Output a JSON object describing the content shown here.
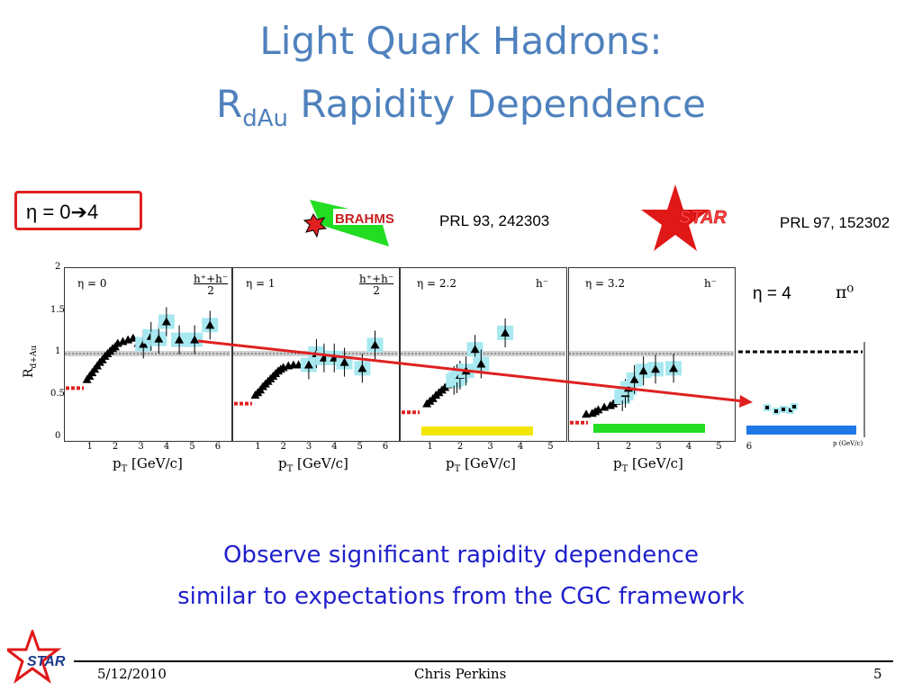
{
  "slide": {
    "title_line1": "Light Quark Hadrons:",
    "title_line2_main": "R",
    "title_line2_sub": "dAu",
    "title_line2_rest": " Rapidity Dependence",
    "eta_range": "η = 0➔4",
    "brahms_logo": "BRAHMS",
    "brahms_ref": "PRL 93, 242303",
    "star_logo": "STAR",
    "star_ref": "PRL 97, 152302",
    "eta4_label": "η = 4",
    "pi0_label": "π⁰",
    "message_line1": "Observe significant rapidity dependence",
    "message_line2": "similar to expectations from the CGC framework",
    "footer_date": "5/12/2010",
    "footer_author": "Chris Perkins",
    "footer_page": "5",
    "footer_logo": "STAR"
  },
  "axes": {
    "y_label": "R",
    "y_label_sub": "d+Au",
    "x_label": "p",
    "x_label_sub": "T",
    "x_label_unit": " [GeV/c]",
    "y_ticks": [
      "2",
      "1.5",
      "1",
      "0.5",
      "0"
    ],
    "x_ticks": [
      "1",
      "2",
      "3",
      "4",
      "5",
      "6"
    ],
    "star_x_label": "p  (GeV/c)"
  },
  "colors": {
    "title": "#4F81BD",
    "message": "#1f1fcc",
    "arrow": "#e02020",
    "eta_box": "#e02020",
    "marker": "#000000",
    "syst": "#a8e8f0",
    "bar_eta22": "#f2e600",
    "bar_eta32": "#22dd22",
    "bar_eta4": "#1e78e6"
  },
  "chart_data": [
    {
      "type": "scatter",
      "panel": "η = 0",
      "species": "h⁺+h⁻ / 2",
      "x": [
        0.9,
        1.0,
        1.1,
        1.2,
        1.3,
        1.4,
        1.5,
        1.6,
        1.7,
        1.8,
        1.9,
        2.0,
        2.1,
        2.3,
        2.5,
        2.7,
        2.9,
        3.1,
        3.4,
        3.7,
        4.0,
        4.5,
        5.1,
        5.7
      ],
      "y": [
        0.7,
        0.74,
        0.78,
        0.82,
        0.86,
        0.9,
        0.93,
        0.97,
        1.0,
        1.03,
        1.06,
        1.08,
        1.12,
        1.14,
        1.16,
        1.18,
        1.12,
        1.11,
        1.2,
        1.17,
        1.37,
        1.16,
        1.16,
        1.33
      ],
      "xlim": [
        0,
        6.5
      ],
      "ylim": [
        0,
        2
      ]
    },
    {
      "type": "scatter",
      "panel": "η = 1",
      "species": "h⁺+h⁻ / 2",
      "x": [
        0.9,
        1.0,
        1.1,
        1.2,
        1.3,
        1.4,
        1.5,
        1.6,
        1.7,
        1.8,
        1.9,
        2.0,
        2.2,
        2.4,
        2.6,
        2.8,
        3.0,
        3.3,
        3.6,
        4.0,
        4.4,
        5.1,
        5.6
      ],
      "y": [
        0.52,
        0.55,
        0.58,
        0.62,
        0.65,
        0.68,
        0.71,
        0.74,
        0.77,
        0.8,
        0.82,
        0.84,
        0.86,
        0.87,
        0.87,
        0.88,
        0.87,
        1.0,
        0.95,
        0.95,
        0.9,
        0.83,
        1.1
      ],
      "xlim": [
        0,
        6.5
      ],
      "ylim": [
        0,
        2
      ]
    },
    {
      "type": "scatter",
      "panel": "η = 2.2",
      "species": "h⁻",
      "x": [
        0.9,
        1.0,
        1.1,
        1.2,
        1.3,
        1.4,
        1.5,
        1.6,
        1.7,
        1.8,
        1.9,
        2.0,
        2.2,
        2.5,
        2.7,
        3.5
      ],
      "y": [
        0.42,
        0.45,
        0.48,
        0.52,
        0.55,
        0.58,
        0.61,
        0.64,
        0.66,
        0.69,
        0.71,
        0.75,
        0.8,
        1.05,
        0.88,
        1.24
      ],
      "xlim": [
        0,
        5.5
      ],
      "ylim": [
        0,
        2
      ]
    },
    {
      "type": "scatter",
      "panel": "η = 3.2",
      "species": "h⁻",
      "x": [
        0.6,
        0.8,
        0.9,
        1.0,
        1.2,
        1.4,
        1.5,
        1.6,
        1.7,
        1.8,
        1.9,
        2.0,
        2.2,
        2.5,
        2.9,
        3.5
      ],
      "y": [
        0.3,
        0.31,
        0.33,
        0.35,
        0.38,
        0.4,
        0.42,
        0.45,
        0.48,
        0.5,
        0.54,
        0.6,
        0.7,
        0.8,
        0.82,
        0.83
      ],
      "xlim": [
        0,
        5.5
      ],
      "ylim": [
        0,
        2
      ]
    }
  ]
}
